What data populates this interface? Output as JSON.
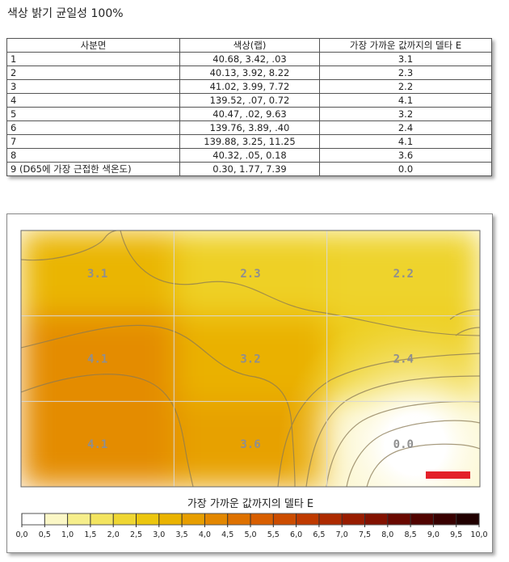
{
  "page_title": "색상 밝기 균일성 100%",
  "table": {
    "headers": [
      "사분면",
      "색상(랩)",
      "가장 가까운 값까지의 델타 E"
    ],
    "rows": [
      {
        "quadrant": "1",
        "lab": "40.68,    3.42,    .03",
        "delta_e": "3.1"
      },
      {
        "quadrant": "2",
        "lab": "40.13,    3.92,    8.22",
        "delta_e": "2.3"
      },
      {
        "quadrant": "3",
        "lab": "41.02,    3.99,    7.72",
        "delta_e": "2.2"
      },
      {
        "quadrant": "4",
        "lab": "139.52,    .07,    0.72",
        "delta_e": "4.1"
      },
      {
        "quadrant": "5",
        "lab": "40.47,    .02,    9.63",
        "delta_e": "3.2"
      },
      {
        "quadrant": "6",
        "lab": "139.76,    3.89,    .40",
        "delta_e": "2.4"
      },
      {
        "quadrant": "7",
        "lab": "139.88,    3.25,  11.25",
        "delta_e": "4.1"
      },
      {
        "quadrant": "8",
        "lab": "40.32,    .05,    0.18",
        "delta_e": "3.6"
      },
      {
        "quadrant": "9 (D65에 가장 근접한 색온도)",
        "lab": "0.30,    1.77,    7.39",
        "delta_e": "0.0"
      }
    ]
  },
  "chart_data": {
    "type": "heatmap",
    "legend_title": "가장 가까운 값까지의 델타 E",
    "grid": {
      "rows": 3,
      "cols": 3
    },
    "cells": [
      {
        "row": 0,
        "col": 0,
        "value": 3.1,
        "label": "3.1"
      },
      {
        "row": 0,
        "col": 1,
        "value": 2.3,
        "label": "2.3"
      },
      {
        "row": 0,
        "col": 2,
        "value": 2.2,
        "label": "2.2"
      },
      {
        "row": 1,
        "col": 0,
        "value": 4.1,
        "label": "4.1"
      },
      {
        "row": 1,
        "col": 1,
        "value": 3.2,
        "label": "3.2"
      },
      {
        "row": 1,
        "col": 2,
        "value": 2.4,
        "label": "2.4"
      },
      {
        "row": 2,
        "col": 0,
        "value": 4.1,
        "label": "4.1"
      },
      {
        "row": 2,
        "col": 1,
        "value": 3.6,
        "label": "3.6"
      },
      {
        "row": 2,
        "col": 2,
        "value": 0.0,
        "label": "0.0"
      }
    ],
    "colorbar": {
      "min": 0,
      "max": 10,
      "step": 0.5,
      "ticks": [
        "0,0",
        "0,5",
        "1,0",
        "1,5",
        "2,0",
        "2,5",
        "3,0",
        "3,5",
        "4,0",
        "4,5",
        "5,0",
        "5,5",
        "6,0",
        "6,5",
        "7,0",
        "7,5",
        "8,0",
        "8,5",
        "9,0",
        "9,5",
        "10,0"
      ],
      "colors": [
        "#ffffff",
        "#fbf7c6",
        "#f6ee8b",
        "#f3e45f",
        "#efd632",
        "#ecc60e",
        "#eab300",
        "#e79e00",
        "#e38700",
        "#de7100",
        "#d85e00",
        "#cc4c00",
        "#bf3a00",
        "#ad2a00",
        "#981c00",
        "#821100",
        "#690800",
        "#500300",
        "#380000",
        "#200000"
      ]
    },
    "marker_color": "#e3202a"
  }
}
